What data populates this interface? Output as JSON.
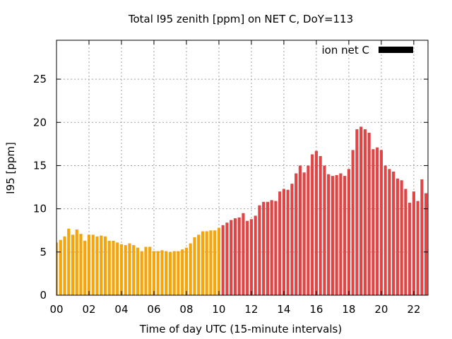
{
  "chart_data": {
    "type": "bar",
    "title": "Total I95 zenith [ppm] on NET C, DoY=113",
    "xlabel": "Time of day UTC (15-minute intervals)",
    "ylabel": "I95 [ppm]",
    "xlim": [
      0,
      22.75
    ],
    "ylim": [
      0,
      29.5
    ],
    "x_ticks": [
      {
        "value": 0,
        "label": "00"
      },
      {
        "value": 2,
        "label": "02"
      },
      {
        "value": 4,
        "label": "04"
      },
      {
        "value": 6,
        "label": "06"
      },
      {
        "value": 8,
        "label": "08"
      },
      {
        "value": 10,
        "label": "10"
      },
      {
        "value": 12,
        "label": "12"
      },
      {
        "value": 14,
        "label": "14"
      },
      {
        "value": 16,
        "label": "16"
      },
      {
        "value": 18,
        "label": "18"
      },
      {
        "value": 20,
        "label": "20"
      },
      {
        "value": 22,
        "label": "22"
      }
    ],
    "y_ticks": [
      {
        "value": 0,
        "label": "0"
      },
      {
        "value": 5,
        "label": "5"
      },
      {
        "value": 10,
        "label": "10"
      },
      {
        "value": 15,
        "label": "15"
      },
      {
        "value": 20,
        "label": "20"
      },
      {
        "value": 25,
        "label": "25"
      }
    ],
    "grid": true,
    "legend": {
      "position": "top-right",
      "entries": [
        {
          "label": "ion net C",
          "color": "#000000"
        }
      ]
    },
    "bar_interval_hours": 0.25,
    "colors": {
      "early": "#f5a40a",
      "late": "#e04444"
    },
    "color_switch_hour": 10.25,
    "x": [
      0,
      0.25,
      0.5,
      0.75,
      1,
      1.25,
      1.5,
      1.75,
      2,
      2.25,
      2.5,
      2.75,
      3,
      3.25,
      3.5,
      3.75,
      4,
      4.25,
      4.5,
      4.75,
      5,
      5.25,
      5.5,
      5.75,
      6,
      6.25,
      6.5,
      6.75,
      7,
      7.25,
      7.5,
      7.75,
      8,
      8.25,
      8.5,
      8.75,
      9,
      9.25,
      9.5,
      9.75,
      10,
      10.25,
      10.5,
      10.75,
      11,
      11.25,
      11.5,
      11.75,
      12,
      12.25,
      12.5,
      12.75,
      13,
      13.25,
      13.5,
      13.75,
      14,
      14.25,
      14.5,
      14.75,
      15,
      15.25,
      15.5,
      15.75,
      16,
      16.25,
      16.5,
      16.75,
      17,
      17.25,
      17.5,
      17.75,
      18,
      18.25,
      18.5,
      18.75,
      19,
      19.25,
      19.5,
      19.75,
      20,
      20.25,
      20.5,
      20.75,
      21,
      21.25,
      21.5,
      21.75,
      22,
      22.25,
      22.5,
      22.75
    ],
    "values": [
      6.1,
      6.4,
      6.8,
      7.7,
      7.0,
      7.6,
      7.1,
      6.3,
      7.0,
      7.0,
      6.8,
      6.9,
      6.8,
      6.3,
      6.3,
      6.1,
      5.9,
      5.8,
      6.0,
      5.8,
      5.5,
      5.1,
      5.6,
      5.6,
      5.1,
      5.1,
      5.2,
      5.1,
      5.0,
      5.1,
      5.1,
      5.3,
      5.5,
      6.0,
      6.7,
      7.0,
      7.4,
      7.4,
      7.5,
      7.5,
      7.8,
      8.1,
      8.4,
      8.7,
      8.9,
      9.0,
      9.5,
      8.6,
      8.8,
      9.2,
      10.4,
      10.8,
      10.8,
      11.0,
      10.9,
      12.0,
      12.3,
      12.2,
      12.9,
      14.1,
      15.0,
      14.2,
      15.0,
      16.3,
      16.7,
      16.1,
      15.0,
      14.0,
      13.8,
      13.9,
      14.1,
      13.8,
      14.6,
      16.8,
      19.2,
      19.5,
      19.2,
      18.8,
      16.9,
      17.1,
      16.8,
      15.0,
      14.6,
      14.3,
      13.5,
      13.3,
      12.3,
      10.7,
      12.0,
      10.9,
      13.4,
      11.8
    ]
  }
}
